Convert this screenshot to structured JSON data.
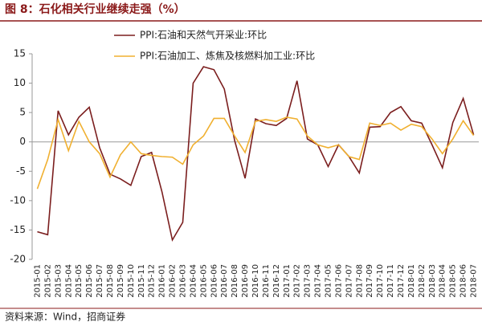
{
  "chart_data": {
    "type": "line",
    "title": "图 8：石化相关行业继续走强（%）",
    "source": "资料来源：Wind，招商证券",
    "categories": [
      "2015-01",
      "2015-02",
      "2015-03",
      "2015-04",
      "2015-05",
      "2015-06",
      "2015-07",
      "2015-08",
      "2015-09",
      "2015-10",
      "2015-11",
      "2015-12",
      "2016-01",
      "2016-02",
      "2016-03",
      "2016-04",
      "2016-05",
      "2016-06",
      "2016-07",
      "2016-08",
      "2016-09",
      "2016-10",
      "2016-11",
      "2016-12",
      "2017-01",
      "2017-02",
      "2017-03",
      "2017-04",
      "2017-05",
      "2017-06",
      "2017-07",
      "2017-08",
      "2017-09",
      "2017-10",
      "2017-11",
      "2017-12",
      "2018-01",
      "2018-02",
      "2018-03",
      "2018-04",
      "2018-05",
      "2018-06",
      "2018-07"
    ],
    "series": [
      {
        "name": "PPI:石油和天然气开采业:环比",
        "color": "#7b1e1e",
        "values": [
          -15.3,
          -15.8,
          5.3,
          1.2,
          4.2,
          5.9,
          -1.0,
          -5.5,
          -6.3,
          -7.4,
          -2.5,
          -1.8,
          -8.5,
          -16.7,
          -13.7,
          10.0,
          12.8,
          12.3,
          9.0,
          0.2,
          -6.2,
          3.9,
          3.1,
          2.8,
          4.0,
          10.4,
          0.5,
          -0.5,
          -4.2,
          -0.5,
          -2.5,
          -5.3,
          2.5,
          2.6,
          5.0,
          6.0,
          3.6,
          3.2,
          -0.5,
          -4.4,
          3.3,
          7.4,
          1.2
        ]
      },
      {
        "name": "PPI:石油加工、炼焦及核燃料加工业:环比",
        "color": "#f0b030",
        "values": [
          -8.0,
          -3.0,
          3.8,
          -1.5,
          3.5,
          0.0,
          -2.0,
          -6.0,
          -2.2,
          0.0,
          -2.0,
          -2.3,
          -2.5,
          -2.6,
          -3.8,
          -0.5,
          1.0,
          4.0,
          4.0,
          1.0,
          -1.8,
          3.5,
          3.8,
          3.5,
          4.2,
          3.9,
          1.0,
          -0.5,
          -1.0,
          -0.5,
          -2.5,
          -3.0,
          3.2,
          2.8,
          3.2,
          2.0,
          3.0,
          2.6,
          0.5,
          -2.0,
          0.5,
          3.6,
          1.1
        ]
      }
    ],
    "ylim": [
      -20,
      15
    ],
    "yticks": [
      -20,
      -15,
      -10,
      -5,
      0,
      5,
      10,
      15
    ]
  }
}
